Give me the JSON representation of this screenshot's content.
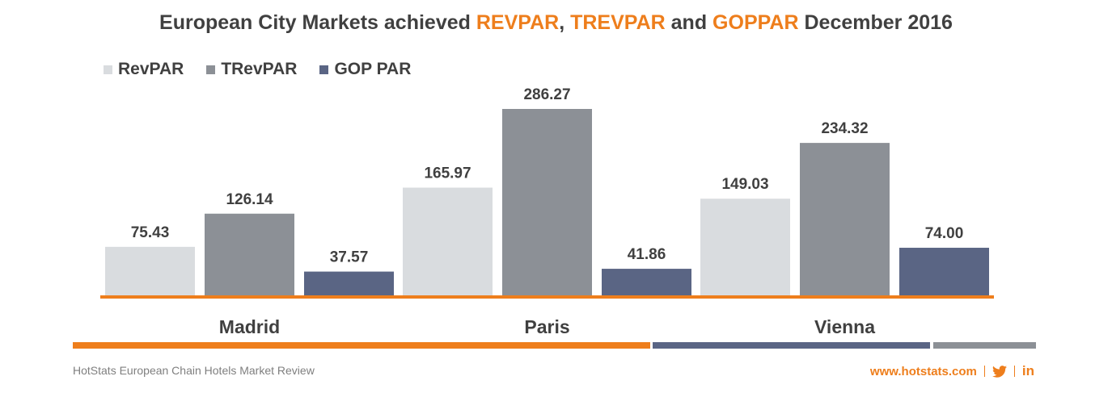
{
  "title": {
    "part1": "European City Markets achieved ",
    "part2": "REVPAR",
    "part3": ", ",
    "part4": "TREVPAR",
    "part5": " and ",
    "part6": "GOPPAR",
    "part7": " December 2016"
  },
  "chart_data": {
    "type": "bar",
    "categories": [
      "Madrid",
      "Paris",
      "Vienna"
    ],
    "series": [
      {
        "name": "RevPAR",
        "values": [
          75.43,
          165.97,
          149.03
        ],
        "labels": [
          "75.43",
          "165.97",
          "149.03"
        ],
        "color": "#d9dcdf"
      },
      {
        "name": "TRevPAR",
        "values": [
          126.14,
          286.27,
          234.32
        ],
        "labels": [
          "126.14",
          "286.27",
          "234.32"
        ],
        "color": "#8c9096"
      },
      {
        "name": "GOP PAR",
        "values": [
          37.57,
          41.86,
          74.0
        ],
        "labels": [
          "37.57",
          "41.86",
          "74.00"
        ],
        "color": "#5a6584"
      }
    ],
    "legend_position": "top-left",
    "grid": false,
    "ylim": [
      0,
      286.27
    ]
  },
  "colors": {
    "accent": "#ee7e1c",
    "dark_bar": "#5a6584",
    "gray_bar": "#8c9096",
    "text": "#404040"
  },
  "footer": {
    "source": "HotStats European Chain Hotels Market Review",
    "website": "www.hotstats.com",
    "social_icons": [
      "twitter-icon",
      "linkedin-icon"
    ],
    "linkedin_glyph": "in"
  }
}
